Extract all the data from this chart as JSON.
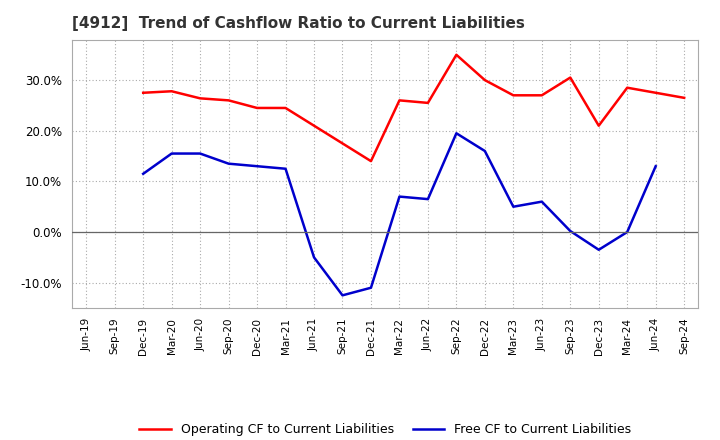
{
  "title": "[4912]  Trend of Cashflow Ratio to Current Liabilities",
  "x_labels": [
    "Jun-19",
    "Sep-19",
    "Dec-19",
    "Mar-20",
    "Jun-20",
    "Sep-20",
    "Dec-20",
    "Mar-21",
    "Jun-21",
    "Sep-21",
    "Dec-21",
    "Mar-22",
    "Jun-22",
    "Sep-22",
    "Dec-22",
    "Mar-23",
    "Jun-23",
    "Sep-23",
    "Dec-23",
    "Mar-24",
    "Jun-24",
    "Sep-24"
  ],
  "operating_x": [
    2,
    3,
    4,
    5,
    6,
    7,
    10,
    11,
    12,
    13,
    14,
    15,
    16,
    17,
    18,
    19,
    20,
    21
  ],
  "operating_y": [
    27.5,
    27.8,
    26.4,
    26.0,
    24.5,
    24.5,
    14.0,
    26.0,
    25.5,
    35.0,
    30.0,
    27.0,
    27.0,
    30.5,
    21.0,
    28.5,
    27.5,
    26.5
  ],
  "free_x": [
    2,
    3,
    4,
    5,
    6,
    7,
    8,
    9,
    10,
    11,
    12,
    13,
    14,
    15,
    16,
    17,
    18,
    19,
    20
  ],
  "free_y": [
    11.5,
    15.5,
    15.5,
    13.5,
    13.0,
    12.5,
    -5.0,
    -12.5,
    -11.0,
    7.0,
    6.5,
    19.5,
    16.0,
    5.0,
    6.0,
    0.2,
    -3.5,
    0.0,
    13.0
  ],
  "ylim": [
    -15,
    38
  ],
  "yticks": [
    -10,
    0,
    10,
    20,
    30
  ],
  "operating_color": "#ff0000",
  "free_color": "#0000cc",
  "legend_operating": "Operating CF to Current Liabilities",
  "legend_free": "Free CF to Current Liabilities",
  "background_color": "#ffffff",
  "grid_color": "#aaaaaa",
  "spine_color": "#aaaaaa"
}
